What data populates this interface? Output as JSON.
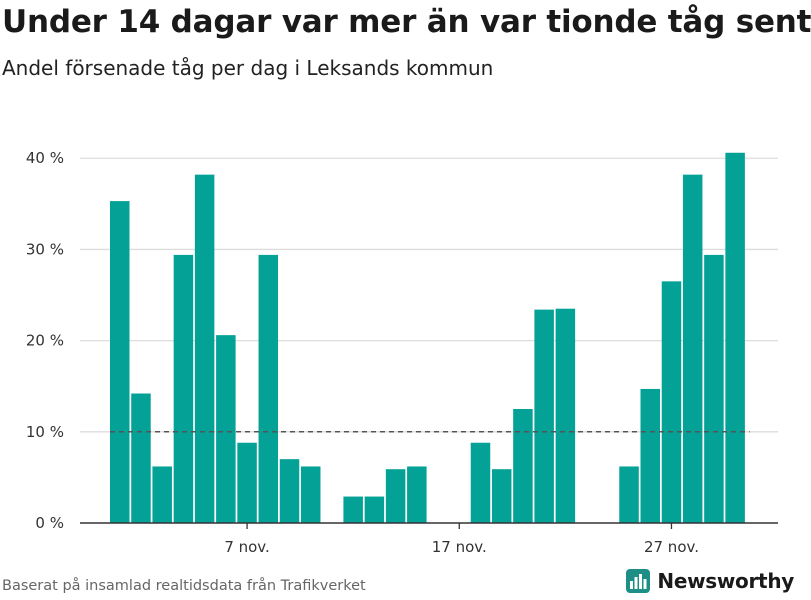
{
  "title": "Under 14 dagar var mer än var tionde tåg sent",
  "subtitle": "Andel försenade tåg per dag i Leksands kommun",
  "source": "Baserat på insamlad realtidsdata från Trafikverket",
  "brand": {
    "name": "Newsworthy",
    "color": "#1e8f86",
    "icon": "bar-chart-logo-icon"
  },
  "colors": {
    "bar": "#04a197",
    "grid": "#dddddd",
    "axis": "#333333",
    "reference": "#555555"
  },
  "chart_data": {
    "type": "bar",
    "title": "Under 14 dagar var mer än var tionde tåg sent",
    "subtitle": "Andel försenade tåg per dag i Leksands kommun",
    "xlabel": "",
    "ylabel": "",
    "x": [
      "2023-11-01",
      "2023-11-02",
      "2023-11-03",
      "2023-11-04",
      "2023-11-05",
      "2023-11-06",
      "2023-11-07",
      "2023-11-08",
      "2023-11-09",
      "2023-11-10",
      "2023-11-11",
      "2023-11-12",
      "2023-11-13",
      "2023-11-14",
      "2023-11-15",
      "2023-11-16",
      "2023-11-17",
      "2023-11-18",
      "2023-11-19",
      "2023-11-20",
      "2023-11-21",
      "2023-11-22",
      "2023-11-23",
      "2023-11-24",
      "2023-11-25",
      "2023-11-26",
      "2023-11-27",
      "2023-11-28",
      "2023-11-29",
      "2023-11-30"
    ],
    "values": [
      35.3,
      14.2,
      6.2,
      29.4,
      38.2,
      20.6,
      8.8,
      29.4,
      7.0,
      6.2,
      null,
      2.9,
      2.9,
      5.9,
      6.2,
      null,
      null,
      8.8,
      5.9,
      12.5,
      23.4,
      23.5,
      null,
      null,
      6.2,
      14.7,
      26.5,
      38.2,
      29.4,
      40.6
    ],
    "reference_line": 10,
    "ylim": [
      0,
      42
    ],
    "yticks": [
      0,
      10,
      20,
      30,
      40
    ],
    "ytick_labels": [
      "0 %",
      "10 %",
      "20 %",
      "30 %",
      "40 %"
    ],
    "xticks": [
      "2023-11-07",
      "2023-11-17",
      "2023-11-27"
    ],
    "xtick_labels": [
      "7 nov.",
      "17 nov.",
      "27 nov."
    ],
    "grid": true
  }
}
